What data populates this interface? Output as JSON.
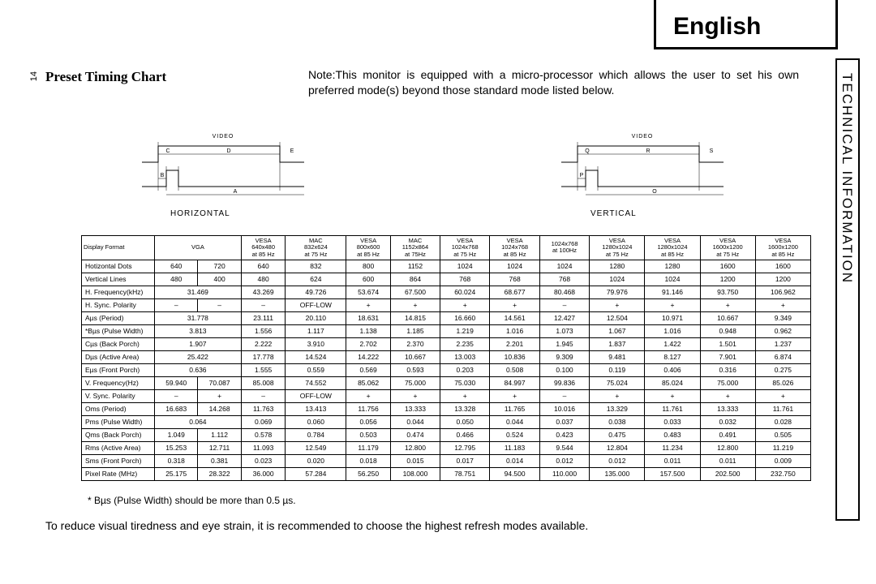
{
  "header": {
    "english": "English",
    "side": "TECHNICAL INFORMATION",
    "page": "14"
  },
  "title": "Preset Timing Chart",
  "note": "Note:This monitor is equipped with a micro-processor which allows the user to set his own preferred mode(s) beyond those standard mode listed below.",
  "diagrams": {
    "h_label": "HORIZONTAL",
    "v_label": "VERTICAL",
    "video": "VIDEO",
    "h_letters": [
      "A",
      "B",
      "C",
      "D",
      "E"
    ],
    "v_letters": [
      "O",
      "P",
      "Q",
      "R",
      "S"
    ]
  },
  "columns": [
    {
      "l1": "",
      "l2": "VGA",
      "l3": "",
      "span": 2
    },
    {
      "l1": "VESA",
      "l2": "640x480",
      "l3": "at 85 Hz"
    },
    {
      "l1": "MAC",
      "l2": "832x624",
      "l3": "at 75 Hz"
    },
    {
      "l1": "VESA",
      "l2": "800x600",
      "l3": "at 85 Hz"
    },
    {
      "l1": "MAC",
      "l2": "1152x864",
      "l3": "at 75Hz"
    },
    {
      "l1": "VESA",
      "l2": "1024x768",
      "l3": "at 75 Hz"
    },
    {
      "l1": "VESA",
      "l2": "1024x768",
      "l3": "at 85 Hz"
    },
    {
      "l1": "",
      "l2": "1024x768",
      "l3": "at 100Hz"
    },
    {
      "l1": "VESA",
      "l2": "1280x1024",
      "l3": "at 75 Hz"
    },
    {
      "l1": "VESA",
      "l2": "1280x1024",
      "l3": "at 85 Hz"
    },
    {
      "l1": "VESA",
      "l2": "1600x1200",
      "l3": "at 75 Hz"
    },
    {
      "l1": "VESA",
      "l2": "1600x1200",
      "l3": "at 85 Hz"
    }
  ],
  "rows": [
    {
      "label": "Display Format",
      "cells": []
    },
    {
      "label": "Hotizontal Dots",
      "cells": [
        "640",
        "720",
        "640",
        "832",
        "800",
        "1152",
        "1024",
        "1024",
        "1024",
        "1280",
        "1280",
        "1600",
        "1600"
      ]
    },
    {
      "label": "Vertical Lines",
      "cells": [
        "480",
        "400",
        "480",
        "624",
        "600",
        "864",
        "768",
        "768",
        "768",
        "1024",
        "1024",
        "1200",
        "1200"
      ]
    },
    {
      "label": "H. Frequency(kHz)",
      "cells": [
        {
          "v": "31.469",
          "span": 2
        },
        "43.269",
        "49.726",
        "53.674",
        "67.500",
        "60.024",
        "68.677",
        "80.468",
        "79.976",
        "91.146",
        "93.750",
        "106.962"
      ]
    },
    {
      "label": "H. Sync. Polarity",
      "cells": [
        "–",
        "–",
        "–",
        "OFF-LOW",
        "+",
        "+",
        "+",
        "+",
        "–",
        "+",
        "+",
        "+",
        "+"
      ]
    },
    {
      "label": "Aµs (Period)",
      "cells": [
        {
          "v": "31.778",
          "span": 2
        },
        "23.111",
        "20.110",
        "18.631",
        "14.815",
        "16.660",
        "14.561",
        "12.427",
        "12.504",
        "10.971",
        "10.667",
        "9.349"
      ]
    },
    {
      "label": "*Bµs (Pulse Width)",
      "cells": [
        {
          "v": "3.813",
          "span": 2
        },
        "1.556",
        "1.117",
        "1.138",
        "1.185",
        "1.219",
        "1.016",
        "1.073",
        "1.067",
        "1.016",
        "0.948",
        "0.962"
      ]
    },
    {
      "label": "Cµs (Back Porch)",
      "cells": [
        {
          "v": "1.907",
          "span": 2
        },
        "2.222",
        "3.910",
        "2.702",
        "2.370",
        "2.235",
        "2.201",
        "1.945",
        "1.837",
        "1.422",
        "1.501",
        "1.237"
      ]
    },
    {
      "label": "Dµs (Active Area)",
      "cells": [
        {
          "v": "25.422",
          "span": 2
        },
        "17.778",
        "14.524",
        "14.222",
        "10.667",
        "13.003",
        "10.836",
        "9.309",
        "9.481",
        "8.127",
        "7.901",
        "6.874"
      ]
    },
    {
      "label": "Eµs (Front Porch)",
      "cells": [
        {
          "v": "0.636",
          "span": 2
        },
        "1.555",
        "0.559",
        "0.569",
        "0.593",
        "0.203",
        "0.508",
        "0.100",
        "0.119",
        "0.406",
        "0.316",
        "0.275"
      ]
    },
    {
      "label": "V. Frequency(Hz)",
      "cells": [
        "59.940",
        "70.087",
        "85.008",
        "74.552",
        "85.062",
        "75.000",
        "75.030",
        "84.997",
        "99.836",
        "75.024",
        "85.024",
        "75.000",
        "85.026"
      ]
    },
    {
      "label": "V. Sync. Polarity",
      "cells": [
        "–",
        "+",
        "–",
        "OFF-LOW",
        "+",
        "+",
        "+",
        "+",
        "–",
        "+",
        "+",
        "+",
        "+"
      ]
    },
    {
      "label": "Oms (Period)",
      "cells": [
        "16.683",
        "14.268",
        "11.763",
        "13.413",
        "11.756",
        "13.333",
        "13.328",
        "11.765",
        "10.016",
        "13.329",
        "11.761",
        "13.333",
        "11.761"
      ]
    },
    {
      "label": "Pms (Pulse Width)",
      "cells": [
        {
          "v": "0.064",
          "span": 2
        },
        "0.069",
        "0.060",
        "0.056",
        "0.044",
        "0.050",
        "0.044",
        "0.037",
        "0.038",
        "0.033",
        "0.032",
        "0.028"
      ]
    },
    {
      "label": "Qms (Back Porch)",
      "cells": [
        "1.049",
        "1.112",
        "0.578",
        "0.784",
        "0.503",
        "0.474",
        "0.466",
        "0.524",
        "0.423",
        "0.475",
        "0.483",
        "0.491",
        "0.505"
      ]
    },
    {
      "label": "Rms (Active Area)",
      "cells": [
        "15.253",
        "12.711",
        "11.093",
        "12.549",
        "11.179",
        "12.800",
        "12.795",
        "11.183",
        "9.544",
        "12.804",
        "11.234",
        "12.800",
        "11.219"
      ]
    },
    {
      "label": "Sms (Front Porch)",
      "cells": [
        "0.318",
        "0.381",
        "0.023",
        "0.020",
        "0.018",
        "0.015",
        "0.017",
        "0.014",
        "0.012",
        "0.012",
        "0.011",
        "0.011",
        "0.009"
      ]
    },
    {
      "label": "Pixel Rate (MHz)",
      "cells": [
        "25.175",
        "28.322",
        "36.000",
        "57.284",
        "56.250",
        "108.000",
        "78.751",
        "94.500",
        "110.000",
        "135.000",
        "157.500",
        "202.500",
        "232.750"
      ]
    }
  ],
  "footnote1": "* Bµs (Pulse Width) should be more than 0.5 µs.",
  "footnote2": "To reduce visual tiredness and eye strain, it is recommended to choose the highest refresh modes available."
}
